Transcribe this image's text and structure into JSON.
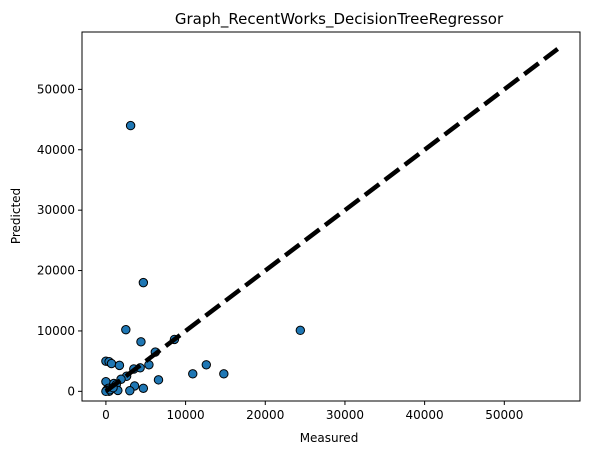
{
  "chart_data": {
    "type": "scatter",
    "title": "Graph_RecentWorks_DecisionTreeRegressor",
    "xlabel": "Measured",
    "ylabel": "Predicted",
    "xlim": [
      -3000,
      59500
    ],
    "ylim": [
      -1600,
      59500
    ],
    "xticks": [
      0,
      10000,
      20000,
      30000,
      40000,
      50000
    ],
    "yticks": [
      0,
      10000,
      20000,
      30000,
      40000,
      50000
    ],
    "xtick_labels": [
      "0",
      "10000",
      "20000",
      "30000",
      "40000",
      "50000"
    ],
    "ytick_labels": [
      "0",
      "10000",
      "20000",
      "30000",
      "40000",
      "50000"
    ],
    "grid": false,
    "point_color": "#1f77b4",
    "point_edge_color": "#000000",
    "reference_line": {
      "x": [
        0,
        56700
      ],
      "y": [
        0,
        56700
      ],
      "color": "#000000",
      "style": "dashed"
    },
    "points": [
      {
        "x": 3100,
        "y": 44000
      },
      {
        "x": 4700,
        "y": 18000
      },
      {
        "x": 2500,
        "y": 10200
      },
      {
        "x": 24400,
        "y": 10100
      },
      {
        "x": 8600,
        "y": 8600
      },
      {
        "x": 4400,
        "y": 8200
      },
      {
        "x": 6200,
        "y": 6500
      },
      {
        "x": 0,
        "y": 5000
      },
      {
        "x": 400,
        "y": 4900
      },
      {
        "x": 700,
        "y": 4600
      },
      {
        "x": 1700,
        "y": 4300
      },
      {
        "x": 5400,
        "y": 4400
      },
      {
        "x": 12600,
        "y": 4400
      },
      {
        "x": 3500,
        "y": 3700
      },
      {
        "x": 4300,
        "y": 3900
      },
      {
        "x": 10900,
        "y": 2900
      },
      {
        "x": 14800,
        "y": 2900
      },
      {
        "x": 2600,
        "y": 2500
      },
      {
        "x": 1900,
        "y": 2000
      },
      {
        "x": 6600,
        "y": 1900
      },
      {
        "x": 0,
        "y": 1600
      },
      {
        "x": 1000,
        "y": 1300
      },
      {
        "x": 1300,
        "y": 1100
      },
      {
        "x": 3600,
        "y": 900
      },
      {
        "x": 4700,
        "y": 500
      },
      {
        "x": 300,
        "y": 500
      },
      {
        "x": 700,
        "y": 400
      },
      {
        "x": 100,
        "y": 200
      },
      {
        "x": 200,
        "y": 100
      },
      {
        "x": 400,
        "y": 0
      },
      {
        "x": 1500,
        "y": 150
      },
      {
        "x": 3000,
        "y": 100
      },
      {
        "x": 0,
        "y": 0
      },
      {
        "x": 500,
        "y": 250
      },
      {
        "x": 900,
        "y": 600
      }
    ]
  }
}
